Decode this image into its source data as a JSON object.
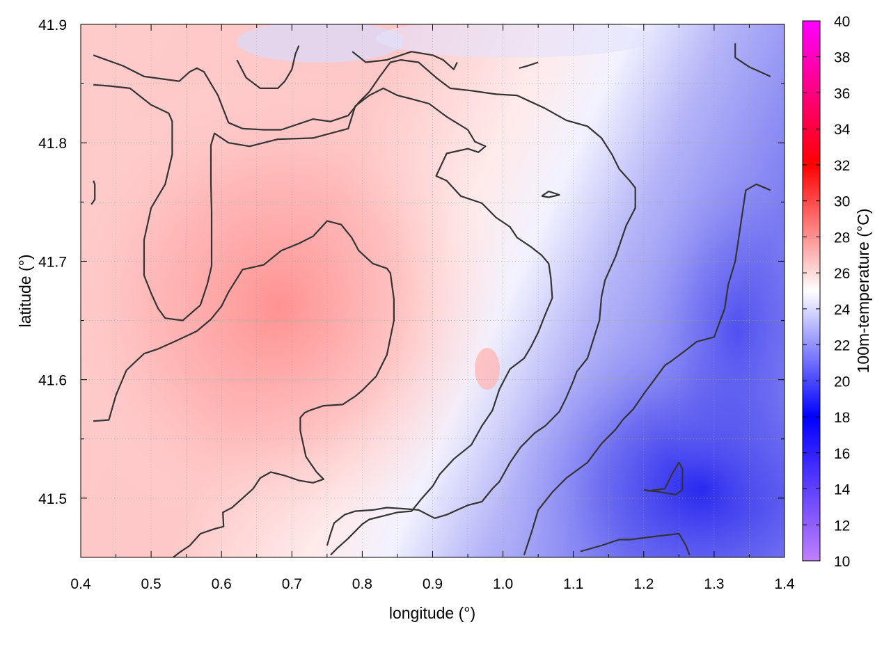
{
  "chart_data": {
    "type": "heatmap",
    "title": "",
    "xlabel": "longitude (°)",
    "ylabel": "latitude (°)",
    "colorbar_label": "100m-temperature (°C)",
    "xlim": [
      0.4,
      1.4
    ],
    "ylim": [
      41.45,
      41.9
    ],
    "x_ticks": [
      0.4,
      0.5,
      0.6,
      0.7,
      0.8,
      0.9,
      1.0,
      1.1,
      1.2,
      1.3,
      1.4
    ],
    "x_tick_labels": [
      "0.4",
      "0.5",
      "0.6",
      "0.7",
      "0.8",
      "0.9",
      "1.0",
      "1.1",
      "1.2",
      "1.3",
      "1.4"
    ],
    "y_ticks": [
      41.5,
      41.6,
      41.7,
      41.8,
      41.9
    ],
    "y_tick_labels": [
      "41.5",
      "41.6",
      "41.7",
      "41.8",
      "41.9"
    ],
    "colorbar_range": [
      10,
      40
    ],
    "colorbar_ticks": [
      10,
      12,
      14,
      16,
      18,
      20,
      22,
      24,
      26,
      28,
      30,
      32,
      34,
      36,
      38,
      40
    ],
    "colorbar_tick_labels": [
      "10",
      "12",
      "14",
      "16",
      "18",
      "20",
      "22",
      "24",
      "26",
      "28",
      "30",
      "32",
      "34",
      "36",
      "38",
      "40"
    ],
    "colormap": [
      {
        "value": 10,
        "color": "#c080ff"
      },
      {
        "value": 18,
        "color": "#0000ff"
      },
      {
        "value": 25,
        "color": "#ffffff"
      },
      {
        "value": 32,
        "color": "#ff0000"
      },
      {
        "value": 40,
        "color": "#ff00ff"
      }
    ],
    "grid": true,
    "field_summary": {
      "warm_core": {
        "lon": 0.69,
        "lat": 41.66,
        "value": 28.5
      },
      "cold_core": {
        "lon": 1.3,
        "lat": 41.47,
        "value": 17.5
      },
      "background": 25.0
    },
    "contours": [
      [
        [
          0.418,
          41.874
        ],
        [
          0.46,
          41.865
        ],
        [
          0.49,
          41.856
        ],
        [
          0.54,
          41.852
        ],
        [
          0.555,
          41.86
        ],
        [
          0.565,
          41.863
        ],
        [
          0.575,
          41.86
        ],
        [
          0.595,
          41.84
        ],
        [
          0.61,
          41.817
        ],
        [
          0.63,
          41.812
        ],
        [
          0.66,
          41.811
        ],
        [
          0.685,
          41.811
        ],
        [
          0.73,
          41.82
        ],
        [
          0.755,
          41.818
        ],
        [
          0.78,
          41.823
        ],
        [
          0.795,
          41.834
        ],
        [
          0.81,
          41.843
        ],
        [
          0.825,
          41.856
        ],
        [
          0.84,
          41.868
        ],
        [
          0.855,
          41.87
        ],
        [
          0.88,
          41.868
        ],
        [
          0.905,
          41.855
        ],
        [
          0.925,
          41.846
        ],
        [
          0.955,
          41.844
        ],
        [
          0.99,
          41.841
        ],
        [
          1.02,
          41.84
        ],
        [
          1.06,
          41.829
        ],
        [
          1.09,
          41.819
        ],
        [
          1.12,
          41.814
        ],
        [
          1.14,
          41.804
        ],
        [
          1.155,
          41.79
        ],
        [
          1.165,
          41.778
        ],
        [
          1.18,
          41.768
        ],
        [
          1.188,
          41.762
        ],
        [
          1.188,
          41.745
        ],
        [
          1.175,
          41.73
        ],
        [
          1.16,
          41.704
        ],
        [
          1.145,
          41.684
        ],
        [
          1.14,
          41.67
        ],
        [
          1.137,
          41.65
        ],
        [
          1.12,
          41.618
        ],
        [
          1.105,
          41.607
        ],
        [
          1.1,
          41.599
        ],
        [
          1.09,
          41.585
        ],
        [
          1.08,
          41.573
        ],
        [
          1.06,
          41.561
        ],
        [
          1.045,
          41.555
        ],
        [
          1.025,
          41.543
        ],
        [
          1.01,
          41.53
        ],
        [
          0.995,
          41.514
        ],
        [
          0.985,
          41.508
        ],
        [
          0.97,
          41.497
        ],
        [
          0.95,
          41.494
        ],
        [
          0.935,
          41.49
        ],
        [
          0.92,
          41.486
        ],
        [
          0.903,
          41.483
        ],
        [
          0.88,
          41.49
        ],
        [
          0.86,
          41.491
        ],
        [
          0.835,
          41.492
        ],
        [
          0.815,
          41.49
        ],
        [
          0.79,
          41.489
        ],
        [
          0.775,
          41.486
        ],
        [
          0.76,
          41.479
        ],
        [
          0.755,
          41.47
        ],
        [
          0.75,
          41.46
        ]
      ],
      [
        [
          0.418,
          41.849
        ],
        [
          0.44,
          41.848
        ],
        [
          0.47,
          41.846
        ],
        [
          0.5,
          41.832
        ],
        [
          0.525,
          41.825
        ],
        [
          0.53,
          41.818
        ],
        [
          0.53,
          41.79
        ],
        [
          0.52,
          41.765
        ],
        [
          0.5,
          41.745
        ],
        [
          0.49,
          41.718
        ],
        [
          0.49,
          41.688
        ],
        [
          0.5,
          41.673
        ],
        [
          0.51,
          41.66
        ],
        [
          0.52,
          41.652
        ],
        [
          0.545,
          41.65
        ],
        [
          0.57,
          41.663
        ],
        [
          0.58,
          41.681
        ],
        [
          0.586,
          41.696
        ],
        [
          0.586,
          41.726
        ],
        [
          0.586,
          41.742
        ],
        [
          0.585,
          41.765
        ],
        [
          0.585,
          41.798
        ],
        [
          0.59,
          41.808
        ],
        [
          0.61,
          41.8
        ],
        [
          0.64,
          41.797
        ],
        [
          0.68,
          41.803
        ],
        [
          0.73,
          41.804
        ],
        [
          0.78,
          41.812
        ],
        [
          0.79,
          41.831
        ],
        [
          0.81,
          41.84
        ],
        [
          0.83,
          41.846
        ],
        [
          0.85,
          41.84
        ],
        [
          0.87,
          41.837
        ],
        [
          0.895,
          41.833
        ],
        [
          0.92,
          41.822
        ],
        [
          0.95,
          41.811
        ],
        [
          0.96,
          41.801
        ],
        [
          0.975,
          41.797
        ],
        [
          0.965,
          41.792
        ],
        [
          0.95,
          41.795
        ],
        [
          0.92,
          41.791
        ],
        [
          0.905,
          41.772
        ],
        [
          0.92,
          41.768
        ],
        [
          0.94,
          41.755
        ],
        [
          0.97,
          41.749
        ],
        [
          0.99,
          41.737
        ],
        [
          1.01,
          41.729
        ],
        [
          1.02,
          41.72
        ],
        [
          1.04,
          41.712
        ],
        [
          1.055,
          41.705
        ],
        [
          1.065,
          41.698
        ],
        [
          1.068,
          41.686
        ],
        [
          1.07,
          41.669
        ],
        [
          1.06,
          41.655
        ],
        [
          1.05,
          41.64
        ],
        [
          1.04,
          41.628
        ],
        [
          1.03,
          41.618
        ],
        [
          1.01,
          41.609
        ],
        [
          0.995,
          41.592
        ],
        [
          0.985,
          41.574
        ],
        [
          0.97,
          41.561
        ],
        [
          0.955,
          41.545
        ],
        [
          0.93,
          41.533
        ],
        [
          0.91,
          41.52
        ],
        [
          0.9,
          41.51
        ],
        [
          0.885,
          41.5
        ],
        [
          0.87,
          41.489
        ],
        [
          0.85,
          41.488
        ],
        [
          0.83,
          41.485
        ],
        [
          0.81,
          41.482
        ],
        [
          0.8,
          41.478
        ],
        [
          0.78,
          41.466
        ],
        [
          0.765,
          41.458
        ],
        [
          0.755,
          41.452
        ]
      ],
      [
        [
          0.418,
          41.565
        ],
        [
          0.44,
          41.566
        ],
        [
          0.45,
          41.587
        ],
        [
          0.465,
          41.608
        ],
        [
          0.49,
          41.622
        ],
        [
          0.51,
          41.626
        ],
        [
          0.54,
          41.634
        ],
        [
          0.565,
          41.641
        ],
        [
          0.585,
          41.651
        ],
        [
          0.6,
          41.662
        ],
        [
          0.61,
          41.674
        ],
        [
          0.63,
          41.693
        ],
        [
          0.66,
          41.697
        ],
        [
          0.685,
          41.709
        ],
        [
          0.71,
          41.715
        ],
        [
          0.73,
          41.721
        ],
        [
          0.75,
          41.734
        ],
        [
          0.77,
          41.731
        ],
        [
          0.785,
          41.72
        ],
        [
          0.795,
          41.709
        ],
        [
          0.815,
          41.698
        ],
        [
          0.835,
          41.694
        ],
        [
          0.84,
          41.69
        ],
        [
          0.845,
          41.668
        ],
        [
          0.845,
          41.65
        ],
        [
          0.835,
          41.621
        ],
        [
          0.82,
          41.603
        ],
        [
          0.8,
          41.591
        ],
        [
          0.79,
          41.586
        ],
        [
          0.772,
          41.579
        ],
        [
          0.745,
          41.578
        ],
        [
          0.725,
          41.574
        ],
        [
          0.718,
          41.572
        ],
        [
          0.712,
          41.568
        ],
        [
          0.712,
          41.557
        ],
        [
          0.72,
          41.535
        ],
        [
          0.735,
          41.522
        ],
        [
          0.745,
          41.516
        ],
        [
          0.73,
          41.513
        ],
        [
          0.71,
          41.515
        ],
        [
          0.69,
          41.519
        ],
        [
          0.67,
          41.522
        ],
        [
          0.655,
          41.517
        ],
        [
          0.645,
          41.508
        ],
        [
          0.63,
          41.5
        ],
        [
          0.615,
          41.492
        ],
        [
          0.602,
          41.488
        ],
        [
          0.603,
          41.476
        ],
        [
          0.59,
          41.474
        ],
        [
          0.57,
          41.47
        ],
        [
          0.555,
          41.46
        ],
        [
          0.54,
          41.454
        ],
        [
          0.525,
          41.447
        ]
      ],
      [
        [
          0.622,
          41.87
        ],
        [
          0.635,
          41.855
        ],
        [
          0.655,
          41.846
        ],
        [
          0.68,
          41.846
        ],
        [
          0.69,
          41.852
        ],
        [
          0.7,
          41.862
        ],
        [
          0.705,
          41.875
        ],
        [
          0.71,
          41.882
        ]
      ],
      [
        [
          0.786,
          41.877
        ],
        [
          0.805,
          41.868
        ],
        [
          0.835,
          41.87
        ],
        [
          0.87,
          41.877
        ],
        [
          0.9,
          41.874
        ],
        [
          0.915,
          41.87
        ],
        [
          0.93,
          41.862
        ],
        [
          0.935,
          41.868
        ]
      ],
      [
        [
          1.023,
          41.863
        ],
        [
          1.035,
          41.865
        ],
        [
          1.05,
          41.868
        ]
      ],
      [
        [
          1.33,
          41.884
        ],
        [
          1.33,
          41.872
        ],
        [
          1.35,
          41.864
        ],
        [
          1.38,
          41.856
        ]
      ],
      [
        [
          1.055,
          41.755
        ],
        [
          1.065,
          41.759
        ],
        [
          1.08,
          41.756
        ],
        [
          1.065,
          41.754
        ],
        [
          1.055,
          41.755
        ]
      ],
      [
        [
          0.418,
          41.768
        ],
        [
          0.42,
          41.765
        ],
        [
          0.42,
          41.752
        ],
        [
          0.415,
          41.748
        ]
      ],
      [
        [
          1.03,
          41.452
        ],
        [
          1.04,
          41.47
        ],
        [
          1.05,
          41.49
        ],
        [
          1.07,
          41.505
        ],
        [
          1.09,
          41.517
        ],
        [
          1.12,
          41.53
        ],
        [
          1.14,
          41.546
        ],
        [
          1.16,
          41.558
        ],
        [
          1.17,
          41.566
        ],
        [
          1.185,
          41.575
        ],
        [
          1.2,
          41.588
        ],
        [
          1.215,
          41.6
        ],
        [
          1.23,
          41.612
        ],
        [
          1.24,
          41.616
        ],
        [
          1.26,
          41.625
        ],
        [
          1.275,
          41.632
        ],
        [
          1.3,
          41.636
        ],
        [
          1.315,
          41.66
        ],
        [
          1.32,
          41.68
        ],
        [
          1.33,
          41.7
        ],
        [
          1.335,
          41.72
        ],
        [
          1.34,
          41.74
        ],
        [
          1.345,
          41.76
        ],
        [
          1.36,
          41.765
        ],
        [
          1.38,
          41.76
        ]
      ],
      [
        [
          1.11,
          41.455
        ],
        [
          1.14,
          41.46
        ],
        [
          1.165,
          41.465
        ],
        [
          1.18,
          41.465
        ],
        [
          1.22,
          41.468
        ],
        [
          1.25,
          41.47
        ],
        [
          1.26,
          41.46
        ],
        [
          1.265,
          41.452
        ]
      ],
      [
        [
          1.2,
          41.507
        ],
        [
          1.225,
          41.505
        ],
        [
          1.245,
          41.503
        ],
        [
          1.255,
          41.507
        ],
        [
          1.255,
          41.525
        ],
        [
          1.25,
          41.53
        ],
        [
          1.24,
          41.52
        ],
        [
          1.23,
          41.508
        ],
        [
          1.205,
          41.506
        ]
      ]
    ]
  }
}
